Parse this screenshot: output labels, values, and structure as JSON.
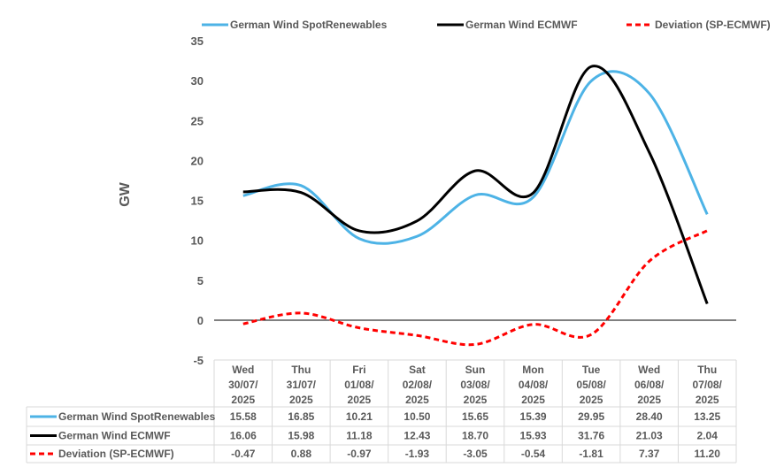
{
  "chart_data": {
    "type": "line",
    "title": "",
    "xlabel": "",
    "ylabel": "GW",
    "ylim": [
      -5,
      35
    ],
    "yticks": [
      -5,
      0,
      5,
      10,
      15,
      20,
      25,
      30,
      35
    ],
    "categories": [
      [
        "Wed",
        "30/07/",
        "2025"
      ],
      [
        "Thu",
        "31/07/",
        "2025"
      ],
      [
        "Fri",
        "01/08/",
        "2025"
      ],
      [
        "Sat",
        "02/08/",
        "2025"
      ],
      [
        "Sun",
        "03/08/",
        "2025"
      ],
      [
        "Mon",
        "04/08/",
        "2025"
      ],
      [
        "Tue",
        "05/08/",
        "2025"
      ],
      [
        "Wed",
        "06/08/",
        "2025"
      ],
      [
        "Thu",
        "07/08/",
        "2025"
      ]
    ],
    "series": [
      {
        "name": "German Wind SpotRenewables",
        "color": "#4DB3E6",
        "dash": "solid",
        "values": [
          15.58,
          16.85,
          10.21,
          10.5,
          15.65,
          15.39,
          29.95,
          28.4,
          13.25
        ],
        "labels": [
          "15.58",
          "16.85",
          "10.21",
          "10.50",
          "15.65",
          "15.39",
          "29.95",
          "28.40",
          "13.25"
        ]
      },
      {
        "name": "German Wind ECMWF",
        "color": "#000000",
        "dash": "solid",
        "values": [
          16.06,
          15.98,
          11.18,
          12.43,
          18.7,
          15.93,
          31.76,
          21.03,
          2.04
        ],
        "labels": [
          "16.06",
          "15.98",
          "11.18",
          "12.43",
          "18.70",
          "15.93",
          "31.76",
          "21.03",
          "2.04"
        ]
      },
      {
        "name": "Deviation (SP-ECMWF)",
        "color": "#FF0000",
        "dash": "dashed",
        "values": [
          -0.47,
          0.88,
          -0.97,
          -1.93,
          -3.05,
          -0.54,
          -1.81,
          7.37,
          11.2
        ],
        "labels": [
          "-0.47",
          "0.88",
          "-0.97",
          "-1.93",
          "-3.05",
          "-0.54",
          "-1.81",
          "7.37",
          "11.20"
        ]
      }
    ],
    "legend": "top",
    "grid": false,
    "data_table": true
  }
}
